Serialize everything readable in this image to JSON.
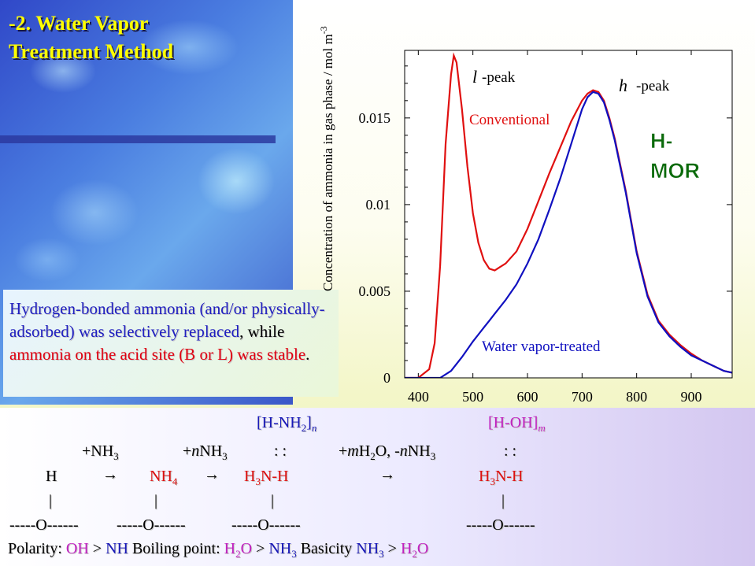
{
  "slide": {
    "title_line1": "-2. Water Vapor",
    "title_line2": "Treatment Method",
    "note": {
      "p1": "Hydrogen-bonded ammonia (and/or physically-adsorbed) was selectively replaced",
      "p2": ", while ",
      "p3": "ammonia on the acid site (B or L) was stable",
      "p4": "."
    }
  },
  "chart_data": {
    "type": "line",
    "ylabel": "Concentration of ammonia in gas phase / mol m",
    "ylabel_sup": "-3",
    "xlim": [
      375,
      975
    ],
    "ylim": [
      0,
      0.0189
    ],
    "x_ticks": [
      400,
      500,
      600,
      700,
      800,
      900
    ],
    "x_tick_labels": [
      "400",
      "500",
      "600",
      "700",
      "800",
      "900"
    ],
    "y_ticks": [
      0,
      0.005,
      0.01,
      0.015
    ],
    "y_tick_labels": [
      "0",
      "0.005",
      "0.01",
      "0.015"
    ],
    "annotations": {
      "l_peak_symbol": "l",
      "l_peak_text": "-peak",
      "h_peak_symbol": "h",
      "h_peak_text": "-peak",
      "sample_line1": "H-",
      "sample_line2": "MOR"
    },
    "series": [
      {
        "name": "Conventional",
        "color": "#e01010",
        "x": [
          375,
          400,
          420,
          430,
          440,
          450,
          460,
          465,
          470,
          480,
          490,
          500,
          510,
          520,
          530,
          540,
          550,
          560,
          580,
          600,
          620,
          640,
          660,
          680,
          700,
          710,
          720,
          730,
          740,
          750,
          760,
          780,
          800,
          820,
          840,
          860,
          880,
          900,
          920,
          940,
          960,
          975
        ],
        "y": [
          0,
          0,
          0.0005,
          0.002,
          0.0065,
          0.0135,
          0.0175,
          0.0186,
          0.0182,
          0.0155,
          0.0122,
          0.0095,
          0.0078,
          0.0068,
          0.0063,
          0.0062,
          0.0064,
          0.0066,
          0.0073,
          0.0086,
          0.0102,
          0.0118,
          0.0133,
          0.0148,
          0.016,
          0.0164,
          0.0166,
          0.0165,
          0.016,
          0.015,
          0.0138,
          0.0108,
          0.0073,
          0.0048,
          0.0033,
          0.0025,
          0.0019,
          0.0014,
          0.001,
          0.0007,
          0.0004,
          0.0003
        ]
      },
      {
        "name": "Water vapor-treated",
        "color": "#1010c0",
        "x": [
          375,
          420,
          440,
          460,
          480,
          500,
          510,
          520,
          530,
          540,
          560,
          580,
          600,
          620,
          640,
          660,
          680,
          700,
          710,
          720,
          730,
          740,
          750,
          760,
          780,
          800,
          820,
          840,
          860,
          880,
          900,
          920,
          940,
          960,
          975
        ],
        "y": [
          0,
          0,
          0,
          0.0004,
          0.0012,
          0.0021,
          0.0025,
          0.0029,
          0.0033,
          0.0037,
          0.0045,
          0.0054,
          0.0066,
          0.008,
          0.0097,
          0.0115,
          0.0135,
          0.0155,
          0.0162,
          0.0165,
          0.0164,
          0.0159,
          0.0149,
          0.0137,
          0.0107,
          0.0072,
          0.0047,
          0.0032,
          0.0024,
          0.0018,
          0.0013,
          0.001,
          0.0007,
          0.0004,
          0.0003
        ]
      }
    ]
  },
  "chem": {
    "bracket1_pre": "[H-NH",
    "bracket1_sub": "2",
    "bracket1_post": "]",
    "bracket1_n": "n",
    "bracket2": "[H-OH]",
    "bracket2_m": "m",
    "plus_nh": "+NH",
    "plus_nh_sub": "3",
    "plus_n_plus": "+",
    "plus_n_n": "n",
    "plus_n_nh": "NH",
    "plus_n_sub": "3",
    "colons1": ":   :",
    "plus_m_plus": "+",
    "plus_m_m": "m",
    "plus_m_h": "H",
    "plus_m_sub": "2",
    "plus_m_o": "O, -",
    "plus_m_n": "n",
    "plus_m_nh": "NH",
    "plus_m_sub2": "3",
    "colons2": ":   :",
    "H": "H",
    "arrow": "→",
    "NH4": "NH",
    "NH4_sub": "4",
    "H3N_a": "H",
    "H3N_a_sub": "3",
    "H3N_a_rest": "N-H",
    "H3N_b": "H",
    "H3N_b_sub": "3",
    "H3N_b_rest": "N-H",
    "bar": "|",
    "O_group": "-----O------",
    "pol_label": "Polarity: ",
    "pol_oh": "OH",
    "gt": " > ",
    "pol_nh": "NH",
    "bp_label": "  Boiling point: ",
    "bp_h2o_h": "H",
    "bp_h2o_sub": "2",
    "bp_h2o_o": "O",
    "bp_nh3": "NH",
    "bp_nh3_sub": "3",
    "bas_label": "  Basicity ",
    "bas_nh3": "NH",
    "bas_nh3_sub": "3",
    "bas_h2o_h": "H",
    "bas_h2o_sub": "2",
    "bas_h2o_o": "O"
  }
}
